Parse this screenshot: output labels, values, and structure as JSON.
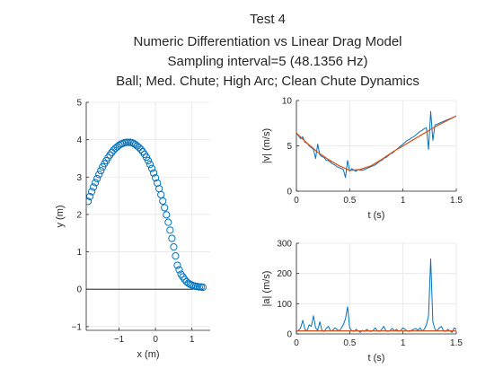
{
  "figure": {
    "title_lines": [
      "Test 4",
      "Numeric Differentiation vs Linear Drag Model",
      "Sampling interval=5 (48.1356 Hz)",
      "Ball; Med. Chute; High Arc; Clean Chute Dynamics"
    ]
  },
  "colors": {
    "series_blue": "#0072bd",
    "series_orange": "#d95319",
    "grid": "#e6e6e6",
    "axis": "#262626"
  },
  "chart_data": [
    {
      "type": "scatter",
      "xlabel": "x (m)",
      "ylabel": "y (m)",
      "xlim": [
        -1.9,
        1.5
      ],
      "ylim": [
        -1.1,
        5
      ],
      "xticks": [
        -1,
        0,
        1
      ],
      "yticks": [
        -1,
        0,
        1,
        2,
        3,
        4,
        5
      ],
      "grid": true,
      "marker": "circle-open",
      "reference_line": {
        "y": 0,
        "x": [
          -1.9,
          1.3
        ],
        "color": "#000000"
      },
      "series": [
        {
          "x": [
            -1.85,
            -1.8,
            -1.75,
            -1.7,
            -1.65,
            -1.6,
            -1.55,
            -1.5,
            -1.45,
            -1.4,
            -1.35,
            -1.3,
            -1.25,
            -1.2,
            -1.15,
            -1.1,
            -1.05,
            -1.0,
            -0.95,
            -0.9,
            -0.85,
            -0.8,
            -0.75,
            -0.7,
            -0.65,
            -0.6,
            -0.55,
            -0.5,
            -0.45,
            -0.4,
            -0.35,
            -0.3,
            -0.25,
            -0.2,
            -0.15,
            -0.1,
            -0.05,
            0.0,
            0.05,
            0.1,
            0.15,
            0.2,
            0.25,
            0.3,
            0.35,
            0.4,
            0.45,
            0.5,
            0.55,
            0.6,
            0.65,
            0.7,
            0.75,
            0.8,
            0.85,
            0.9,
            0.95,
            1.0,
            1.05,
            1.1,
            1.15,
            1.2,
            1.25,
            1.3
          ],
          "y": [
            2.35,
            2.48,
            2.61,
            2.73,
            2.85,
            2.96,
            3.07,
            3.17,
            3.27,
            3.36,
            3.44,
            3.52,
            3.59,
            3.66,
            3.72,
            3.77,
            3.81,
            3.85,
            3.88,
            3.9,
            3.92,
            3.93,
            3.93,
            3.93,
            3.92,
            3.9,
            3.87,
            3.83,
            3.79,
            3.74,
            3.68,
            3.61,
            3.53,
            3.44,
            3.34,
            3.23,
            3.11,
            2.98,
            2.84,
            2.69,
            2.53,
            2.36,
            2.18,
            1.99,
            1.79,
            1.58,
            1.36,
            1.13,
            0.89,
            0.64,
            0.52,
            0.4,
            0.33,
            0.26,
            0.2,
            0.16,
            0.13,
            0.11,
            0.09,
            0.08,
            0.07,
            0.06,
            0.06,
            0.05
          ]
        }
      ]
    },
    {
      "type": "line",
      "xlabel": "t (s)",
      "ylabel": "|v| (m/s)",
      "xlim": [
        0,
        1.5
      ],
      "ylim": [
        0,
        10
      ],
      "xticks": [
        0,
        0.5,
        1,
        1.5
      ],
      "yticks": [
        0,
        5,
        10
      ],
      "grid": true,
      "series": [
        {
          "color": "#0072bd",
          "x": [
            0,
            0.02,
            0.04,
            0.06,
            0.08,
            0.1,
            0.12,
            0.14,
            0.16,
            0.18,
            0.2,
            0.22,
            0.24,
            0.26,
            0.28,
            0.3,
            0.32,
            0.34,
            0.36,
            0.38,
            0.4,
            0.42,
            0.44,
            0.46,
            0.48,
            0.5,
            0.52,
            0.54,
            0.56,
            0.58,
            0.6,
            0.62,
            0.64,
            0.66,
            0.68,
            0.7,
            0.72,
            0.74,
            0.76,
            0.78,
            0.8,
            0.82,
            0.84,
            0.86,
            0.88,
            0.9,
            0.92,
            0.94,
            0.96,
            0.98,
            1.0,
            1.02,
            1.04,
            1.06,
            1.08,
            1.1,
            1.12,
            1.14,
            1.16,
            1.18,
            1.2,
            1.22,
            1.24,
            1.26,
            1.28,
            1.3,
            1.32,
            1.34,
            1.36,
            1.38,
            1.4,
            1.42,
            1.44,
            1.46,
            1.48,
            1.5
          ],
          "y": [
            6.4,
            6.1,
            5.8,
            6.0,
            5.4,
            5.3,
            5.0,
            4.8,
            4.6,
            3.6,
            5.2,
            4.0,
            3.8,
            3.7,
            3.4,
            3.4,
            3.2,
            3.0,
            2.9,
            2.7,
            2.6,
            2.5,
            2.4,
            1.5,
            3.4,
            2.2,
            2.5,
            2.3,
            2.2,
            2.4,
            2.3,
            2.3,
            2.4,
            2.5,
            2.6,
            2.7,
            2.8,
            2.9,
            3.1,
            3.3,
            3.4,
            3.6,
            3.7,
            3.9,
            4.1,
            4.2,
            4.4,
            4.6,
            4.8,
            5.0,
            5.2,
            5.4,
            5.6,
            5.7,
            5.9,
            6.0,
            6.2,
            6.4,
            6.6,
            6.7,
            6.9,
            7.0,
            4.6,
            8.8,
            5.6,
            7.3,
            7.4,
            7.5,
            7.6,
            7.7,
            7.8,
            7.9,
            8.0,
            8.1,
            8.2,
            8.3
          ]
        },
        {
          "color": "#d95319",
          "x": [
            0,
            0.1,
            0.2,
            0.3,
            0.4,
            0.5,
            0.6,
            0.7,
            0.8,
            0.9,
            1.0,
            1.1,
            1.2,
            1.3,
            1.4,
            1.5
          ],
          "y": [
            6.4,
            5.3,
            4.3,
            3.5,
            2.8,
            2.3,
            2.4,
            2.8,
            3.5,
            4.3,
            5.0,
            5.7,
            6.4,
            7.1,
            7.7,
            8.3
          ]
        }
      ]
    },
    {
      "type": "line",
      "xlabel": "t (s)",
      "ylabel": "|a| (m/s)",
      "xlim": [
        0,
        1.5
      ],
      "ylim": [
        0,
        300
      ],
      "xticks": [
        0,
        0.5,
        1,
        1.5
      ],
      "yticks": [
        0,
        100,
        200,
        300
      ],
      "grid": true,
      "series": [
        {
          "color": "#0072bd",
          "x": [
            0,
            0.02,
            0.04,
            0.06,
            0.08,
            0.1,
            0.12,
            0.14,
            0.16,
            0.18,
            0.2,
            0.22,
            0.24,
            0.26,
            0.28,
            0.3,
            0.32,
            0.34,
            0.36,
            0.38,
            0.4,
            0.42,
            0.44,
            0.46,
            0.48,
            0.5,
            0.52,
            0.54,
            0.56,
            0.58,
            0.6,
            0.62,
            0.64,
            0.66,
            0.68,
            0.7,
            0.72,
            0.74,
            0.76,
            0.78,
            0.8,
            0.82,
            0.84,
            0.86,
            0.88,
            0.9,
            0.92,
            0.94,
            0.96,
            0.98,
            1.0,
            1.02,
            1.04,
            1.06,
            1.08,
            1.1,
            1.12,
            1.14,
            1.16,
            1.18,
            1.2,
            1.22,
            1.24,
            1.26,
            1.28,
            1.3,
            1.32,
            1.34,
            1.36,
            1.38,
            1.4,
            1.42,
            1.44,
            1.46,
            1.48,
            1.5
          ],
          "y": [
            8,
            12,
            20,
            45,
            15,
            10,
            30,
            25,
            60,
            20,
            12,
            40,
            10,
            8,
            18,
            25,
            10,
            12,
            20,
            15,
            10,
            18,
            30,
            50,
            90,
            20,
            10,
            8,
            15,
            10,
            5,
            12,
            8,
            15,
            10,
            8,
            12,
            20,
            10,
            8,
            15,
            25,
            10,
            8,
            12,
            18,
            10,
            15,
            8,
            12,
            20,
            15,
            10,
            8,
            12,
            15,
            18,
            12,
            20,
            10,
            15,
            30,
            60,
            248,
            40,
            15,
            10,
            20,
            25,
            10,
            8,
            15,
            10,
            5,
            20,
            15
          ]
        },
        {
          "color": "#d95319",
          "x": [
            0,
            0.3,
            0.6,
            0.9,
            1.2,
            1.5
          ],
          "y": [
            10,
            10,
            10,
            10,
            10,
            10
          ]
        }
      ]
    }
  ]
}
